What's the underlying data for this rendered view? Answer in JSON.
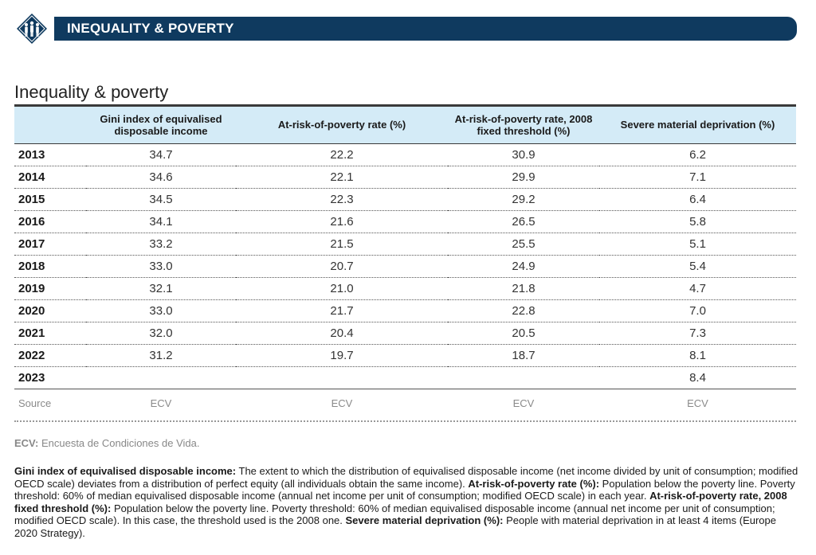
{
  "banner": {
    "title": "INEQUALITY & POVERTY",
    "logo_icon": "people-group-icon"
  },
  "section": {
    "title": "Inequality & poverty"
  },
  "table": {
    "headers": [
      "",
      "Gini index of equivalised disposable income",
      "At-risk-of-poverty rate (%)",
      "At-risk-of-poverty rate, 2008 fixed threshold (%)",
      "Severe material deprivation (%)"
    ],
    "rows": [
      {
        "year": "2013",
        "values": [
          "34.7",
          "22.2",
          "30.9",
          "6.2"
        ]
      },
      {
        "year": "2014",
        "values": [
          "34.6",
          "22.1",
          "29.9",
          "7.1"
        ]
      },
      {
        "year": "2015",
        "values": [
          "34.5",
          "22.3",
          "29.2",
          "6.4"
        ]
      },
      {
        "year": "2016",
        "values": [
          "34.1",
          "21.6",
          "26.5",
          "5.8"
        ]
      },
      {
        "year": "2017",
        "values": [
          "33.2",
          "21.5",
          "25.5",
          "5.1"
        ]
      },
      {
        "year": "2018",
        "values": [
          "33.0",
          "20.7",
          "24.9",
          "5.4"
        ]
      },
      {
        "year": "2019",
        "values": [
          "32.1",
          "21.0",
          "21.8",
          "4.7"
        ]
      },
      {
        "year": "2020",
        "values": [
          "33.0",
          "21.7",
          "22.8",
          "7.0"
        ]
      },
      {
        "year": "2021",
        "values": [
          "32.0",
          "20.4",
          "20.5",
          "7.3"
        ]
      },
      {
        "year": "2022",
        "values": [
          "31.2",
          "19.7",
          "18.7",
          "8.1"
        ]
      },
      {
        "year": "2023",
        "values": [
          "",
          "",
          "",
          "8.4"
        ]
      }
    ],
    "source": {
      "label": "Source",
      "values": [
        "ECV",
        "ECV",
        "ECV",
        "ECV"
      ]
    }
  },
  "abbreviation": {
    "term": "ECV:",
    "text": " Encuesta de Condiciones de Vida."
  },
  "notes": [
    {
      "term": "Gini index of equivalised disposable income:",
      "text": " The extent to which the distribution of equivalised disposable income (net income divided by unit of consumption; modified OECD scale) deviates from a distribution of perfect equity (all individuals obtain the same income). "
    },
    {
      "term": "At-risk-of-poverty rate (%):",
      "text": " Population below the poverty line. Poverty threshold: 60% of median equivalised disposable income (annual net income per unit of consumption; modified OECD scale) in each year. "
    },
    {
      "term": "At-risk-of-poverty rate, 2008 fixed threshold (%):",
      "text": " Population below the poverty line. Poverty threshold: 60% of median equivalised disposable income (annual net income per unit of consumption; modified OECD scale). In this case, the threshold used is the 2008 one. "
    },
    {
      "term": "Severe material deprivation (%):",
      "text": " People with material deprivation in at least 4 items (Europe 2020 Strategy)."
    }
  ]
}
